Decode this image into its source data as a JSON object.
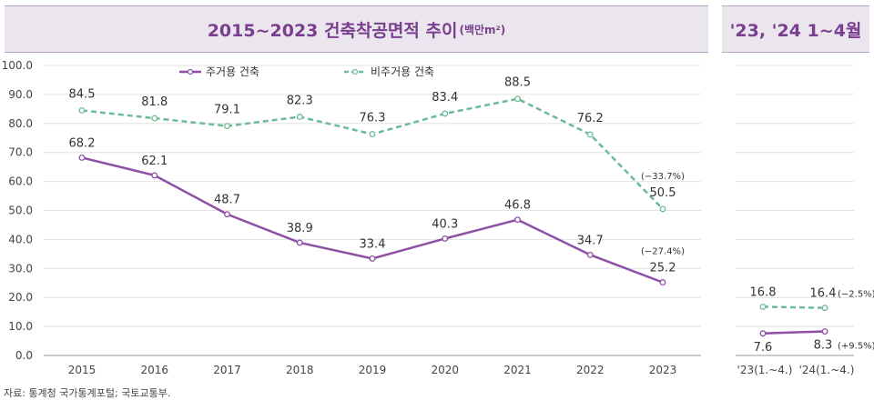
{
  "header": {
    "main_title": "2015~2023 건축착공면적 추이",
    "main_unit": "(백만m²)",
    "side_title": "'23, '24 1~4월"
  },
  "source": "자료: 통계청 국가통계포털; 국토교통부.",
  "colors": {
    "residential": "#8e4fa5",
    "non_residential": "#6dba97",
    "title": "#7a3e8e"
  },
  "chart_data": [
    {
      "type": "line",
      "title": "2015~2023 건축착공면적 추이(백만m²)",
      "categories": [
        "2015",
        "2016",
        "2017",
        "2018",
        "2019",
        "2020",
        "2021",
        "2022",
        "2023"
      ],
      "yticks": [
        "100.0",
        "90.0",
        "80.0",
        "70.0",
        "60.0",
        "50.0",
        "40.0",
        "30.0",
        "20.0",
        "10.0",
        "0.0"
      ],
      "ylim": [
        0,
        100
      ],
      "grid": true,
      "legend": "top",
      "series": [
        {
          "name": "주거용 건축",
          "values": [
            68.2,
            62.1,
            48.7,
            38.9,
            33.4,
            40.3,
            46.8,
            34.7,
            25.2
          ],
          "labels": [
            "68.2",
            "62.1",
            "48.7",
            "38.9",
            "33.4",
            "40.3",
            "46.8",
            "34.7",
            "25.2"
          ],
          "style": "solid",
          "color": "#8e4fa5"
        },
        {
          "name": "비주거용 건축",
          "values": [
            84.5,
            81.8,
            79.1,
            82.3,
            76.3,
            83.4,
            88.5,
            76.2,
            50.5
          ],
          "labels": [
            "84.5",
            "81.8",
            "79.1",
            "82.3",
            "76.3",
            "83.4",
            "88.5",
            "76.2",
            "50.5"
          ],
          "style": "dashed",
          "color": "#6dba97"
        }
      ],
      "annotations": [
        {
          "text": "(−33.7%)",
          "series": "비주거용 건축",
          "category": "2023"
        },
        {
          "text": "(−27.4%)",
          "series": "주거용 건축",
          "category": "2023"
        }
      ]
    },
    {
      "type": "line",
      "title": "'23, '24 1~4월",
      "categories": [
        "'23(1.~4.)",
        "'24(1.~4.)"
      ],
      "ylim": [
        0,
        100
      ],
      "series": [
        {
          "name": "주거용 건축",
          "values": [
            7.6,
            8.3
          ],
          "labels": [
            "7.6",
            "8.3"
          ],
          "style": "solid",
          "color": "#8e4fa5"
        },
        {
          "name": "비주거용 건축",
          "values": [
            16.8,
            16.4
          ],
          "labels": [
            "16.8",
            "16.4"
          ],
          "style": "dashed",
          "color": "#6dba97"
        }
      ],
      "annotations": [
        {
          "text": "(−2.5%)",
          "series": "비주거용 건축",
          "category": "'24(1.~4.)"
        },
        {
          "text": "(+9.5%)",
          "series": "주거용 건축",
          "category": "'24(1.~4.)"
        }
      ]
    }
  ]
}
